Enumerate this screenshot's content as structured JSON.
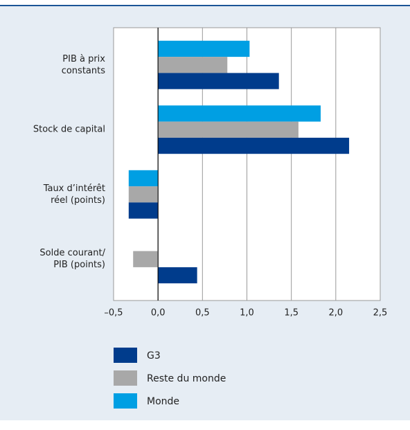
{
  "chart_data": {
    "type": "hbar",
    "categories": [
      "PIB à prix\nconstants",
      "Stock de capital",
      "Taux d’intérêt\nréel (points)",
      "Solde courant/\nPIB (points)"
    ],
    "series": [
      {
        "name": "Monde",
        "color": "#009fe3",
        "values": [
          1.03,
          1.83,
          -0.33,
          null
        ]
      },
      {
        "name": "Reste du monde",
        "color": "#a8a8a8",
        "values": [
          0.78,
          1.58,
          -0.33,
          -0.28
        ]
      },
      {
        "name": "G3",
        "color": "#003c8c",
        "values": [
          1.36,
          2.15,
          -0.33,
          0.44
        ]
      }
    ],
    "legend_order": [
      "G3",
      "Reste du monde",
      "Monde"
    ],
    "xlim": [
      -0.5,
      2.5
    ],
    "xticks": [
      {
        "value": -0.5,
        "label": "–0,5"
      },
      {
        "value": 0,
        "label": "0,0"
      },
      {
        "value": 0.5,
        "label": "0,5"
      },
      {
        "value": 1,
        "label": "1,0"
      },
      {
        "value": 1.5,
        "label": "1,5"
      },
      {
        "value": 2,
        "label": "2,0"
      },
      {
        "value": 2.5,
        "label": "2,5"
      }
    ],
    "grid": true
  }
}
